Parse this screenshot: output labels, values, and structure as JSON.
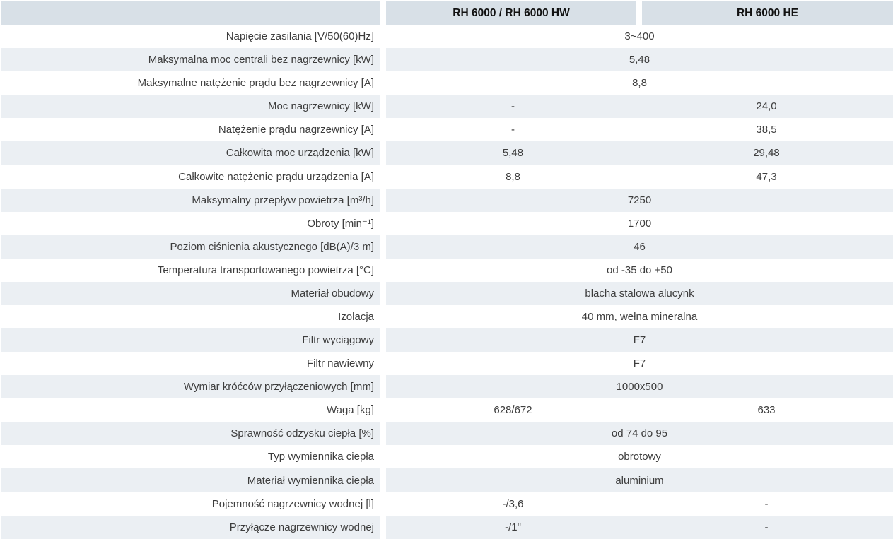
{
  "table": {
    "title_columns": {
      "label_header": "",
      "col1_header": "RH 6000 / RH 6000 HW",
      "col2_header": "RH 6000 HE"
    },
    "colors": {
      "header_bg": "#d8e0e7",
      "shaded_row_bg": "#ebeff3",
      "plain_row_bg": "#ffffff",
      "label_text": "#3d3d3d",
      "header_text": "#121212"
    },
    "rows": [
      {
        "label": "Napięcie zasilania [V/50(60)Hz]",
        "merged": "3~400"
      },
      {
        "label": "Maksymalna moc centrali bez nagrzewnicy [kW]",
        "merged": "5,48"
      },
      {
        "label": "Maksymalne natężenie prądu bez nagrzewnicy [A]",
        "merged": "8,8"
      },
      {
        "label": "Moc nagrzewnicy [kW]",
        "col1": "-",
        "col2": "24,0"
      },
      {
        "label": "Natężenie prądu nagrzewnicy [A]",
        "col1": "-",
        "col2": "38,5"
      },
      {
        "label": "Całkowita moc urządzenia [kW]",
        "col1": "5,48",
        "col2": "29,48"
      },
      {
        "label": "Całkowite natężenie prądu urządzenia [A]",
        "col1": "8,8",
        "col2": "47,3"
      },
      {
        "label": "Maksymalny przepływ powietrza [m³/h]",
        "merged": "7250"
      },
      {
        "label": "Obroty [min⁻¹]",
        "merged": "1700"
      },
      {
        "label": "Poziom ciśnienia akustycznego [dB(A)/3 m]",
        "merged": "46"
      },
      {
        "label": "Temperatura transportowanego powietrza [°C]",
        "merged": "od -35 do +50"
      },
      {
        "label": "Materiał obudowy",
        "merged": "blacha stalowa alucynk"
      },
      {
        "label": "Izolacja",
        "merged": "40 mm, wełna mineralna"
      },
      {
        "label": "Filtr wyciągowy",
        "merged": "F7"
      },
      {
        "label": "Filtr nawiewny",
        "merged": "F7"
      },
      {
        "label": "Wymiar króćców przyłączeniowych [mm]",
        "merged": "1000x500"
      },
      {
        "label": "Waga [kg]",
        "col1": "628/672",
        "col2": "633"
      },
      {
        "label": "Sprawność odzysku ciepła [%]",
        "merged": "od 74 do 95"
      },
      {
        "label": "Typ wymiennika ciepła",
        "merged": "obrotowy"
      },
      {
        "label": "Materiał wymiennika ciepła",
        "merged": "aluminium"
      },
      {
        "label": "Pojemność nagrzewnicy wodnej [l]",
        "col1": "-/3,6",
        "col2": "-"
      },
      {
        "label": "Przyłącze nagrzewnicy wodnej",
        "col1": "-/1\"",
        "col2": "-"
      }
    ]
  }
}
